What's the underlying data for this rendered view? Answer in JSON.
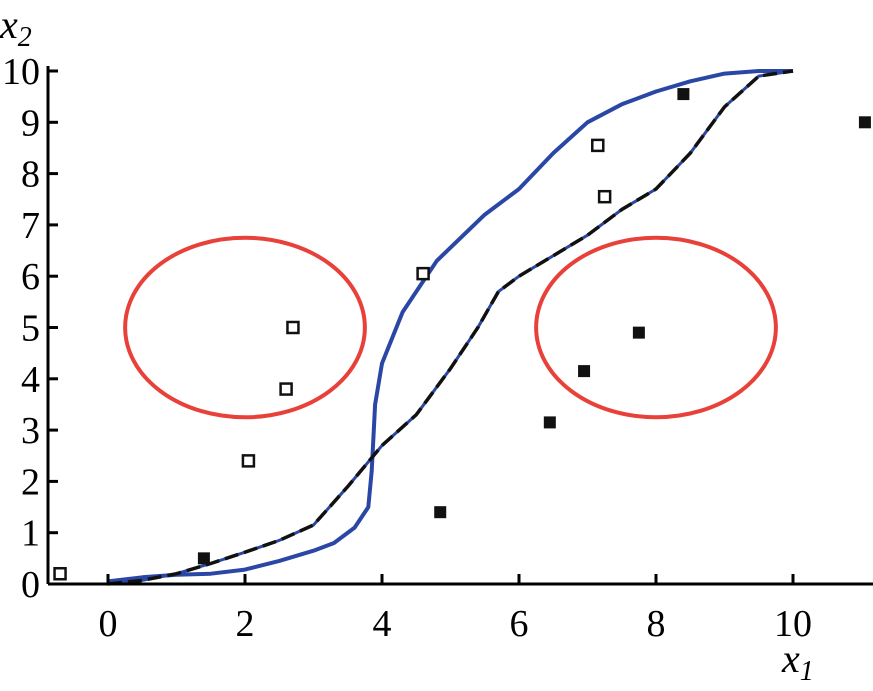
{
  "chart_data": {
    "type": "scatter",
    "title": "",
    "xlabel": {
      "var": "x",
      "sub": "1"
    },
    "ylabel": {
      "var": "x",
      "sub": "2"
    },
    "xlim": [
      -0.8,
      11.2
    ],
    "ylim": [
      0,
      10
    ],
    "x_ticks": [
      0,
      2,
      4,
      6,
      8,
      10
    ],
    "y_ticks": [
      0,
      1,
      2,
      3,
      4,
      5,
      6,
      7,
      8,
      9,
      10
    ],
    "grid": false,
    "legend": "none",
    "colors": {
      "solid_curve": "#2b47a6",
      "dashed_curve": "#111111",
      "ellipse": "#e8413a",
      "marker": "#111111"
    },
    "series": [
      {
        "marker": "open-square",
        "points": [
          [
            -0.7,
            0.2
          ],
          [
            2.05,
            2.4
          ],
          [
            2.6,
            3.8
          ],
          [
            2.7,
            5.0
          ],
          [
            4.6,
            6.05
          ],
          [
            7.15,
            8.55
          ],
          [
            7.25,
            7.55
          ]
        ]
      },
      {
        "marker": "filled-square",
        "points": [
          [
            1.4,
            0.5
          ],
          [
            4.85,
            1.4
          ],
          [
            6.45,
            3.15
          ],
          [
            6.95,
            4.15
          ],
          [
            7.75,
            4.9
          ],
          [
            8.4,
            9.55
          ],
          [
            11.05,
            9.0
          ]
        ]
      }
    ],
    "curves": [
      {
        "style": "solid",
        "points": [
          [
            0,
            0.05
          ],
          [
            0.5,
            0.13
          ],
          [
            1,
            0.18
          ],
          [
            1.5,
            0.2
          ],
          [
            2,
            0.28
          ],
          [
            2.5,
            0.45
          ],
          [
            3,
            0.65
          ],
          [
            3.3,
            0.8
          ],
          [
            3.6,
            1.1
          ],
          [
            3.8,
            1.5
          ],
          [
            3.85,
            2.2
          ],
          [
            3.88,
            3.0
          ],
          [
            3.9,
            3.5
          ],
          [
            4.0,
            4.3
          ],
          [
            4.3,
            5.3
          ],
          [
            4.8,
            6.3
          ],
          [
            5.5,
            7.2
          ],
          [
            6.0,
            7.7
          ],
          [
            6.5,
            8.4
          ],
          [
            7.0,
            9.0
          ],
          [
            7.5,
            9.35
          ],
          [
            8.0,
            9.6
          ],
          [
            8.5,
            9.8
          ],
          [
            9.0,
            9.95
          ],
          [
            9.5,
            10.0
          ],
          [
            10,
            10.0
          ]
        ]
      },
      {
        "style": "dashed",
        "points": [
          [
            0,
            0.0
          ],
          [
            0.5,
            0.07
          ],
          [
            1,
            0.2
          ],
          [
            1.5,
            0.4
          ],
          [
            2,
            0.62
          ],
          [
            2.5,
            0.85
          ],
          [
            3,
            1.15
          ],
          [
            3.5,
            1.9
          ],
          [
            4.0,
            2.7
          ],
          [
            4.5,
            3.3
          ],
          [
            5.0,
            4.2
          ],
          [
            5.4,
            5.0
          ],
          [
            5.7,
            5.7
          ],
          [
            6.0,
            6.0
          ],
          [
            6.5,
            6.4
          ],
          [
            7.0,
            6.8
          ],
          [
            7.5,
            7.3
          ],
          [
            8.0,
            7.7
          ],
          [
            8.5,
            8.4
          ],
          [
            9.0,
            9.3
          ],
          [
            9.5,
            9.9
          ],
          [
            10,
            10.0
          ]
        ]
      }
    ],
    "ellipses": [
      {
        "cx": 2.0,
        "cy": 5.0,
        "rx": 1.75,
        "ry": 1.75
      },
      {
        "cx": 8.0,
        "cy": 5.0,
        "rx": 1.75,
        "ry": 1.75
      }
    ]
  }
}
